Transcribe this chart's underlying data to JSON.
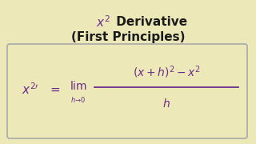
{
  "bg_color": "#ede8b8",
  "title_color": "#1a1a1a",
  "title_x_color": "#6b2d8b",
  "formula_color": "#6b2d8b",
  "box_edge_color": "#aaaaaa",
  "figsize": [
    3.2,
    1.8
  ],
  "dpi": 100,
  "title_fontsize": 11,
  "formula_fontsize": 10,
  "lim_fontsize": 9,
  "sub_fontsize": 6,
  "num_fontsize": 9,
  "den_fontsize": 9
}
